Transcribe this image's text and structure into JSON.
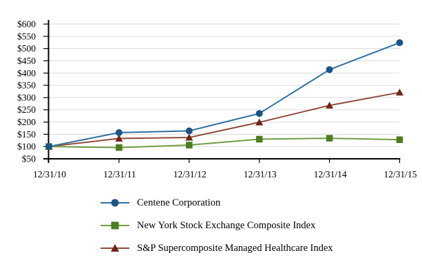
{
  "chart_data": {
    "type": "line",
    "title": "",
    "categories": [
      "12/31/10",
      "12/31/11",
      "12/31/12",
      "12/31/13",
      "12/31/14",
      "12/31/15"
    ],
    "series": [
      {
        "name": "Centene Corporation",
        "marker": "circle",
        "line_color": "#2F6F9F",
        "marker_color": "#1B5486",
        "values": [
          100,
          157,
          164,
          235,
          414,
          524
        ]
      },
      {
        "name": "New York Stock Exchange Composite Index",
        "marker": "square",
        "line_color": "#6F9C3E",
        "marker_color": "#4E7D20",
        "values": [
          100,
          96,
          106,
          130,
          134,
          128
        ]
      },
      {
        "name": "S&P Supercomposite Managed Healthcare Index",
        "marker": "triangle",
        "line_color": "#8F4C3B",
        "marker_color": "#6F2418",
        "values": [
          100,
          133,
          137,
          199,
          268,
          321
        ]
      }
    ],
    "y_axis": {
      "min": 50,
      "max": 600,
      "step": 50,
      "tick_labels": [
        "$50",
        "$100",
        "$150",
        "$200",
        "$250",
        "$300",
        "$350",
        "$400",
        "$450",
        "$500",
        "$550",
        "$600"
      ]
    },
    "x_axis": {
      "tick_labels_are_categories": true
    },
    "grid": true,
    "gridline_color": "#DADADA",
    "axis_color": "#000000",
    "legend_position": "bottom-left",
    "ylim": [
      50,
      600
    ]
  }
}
